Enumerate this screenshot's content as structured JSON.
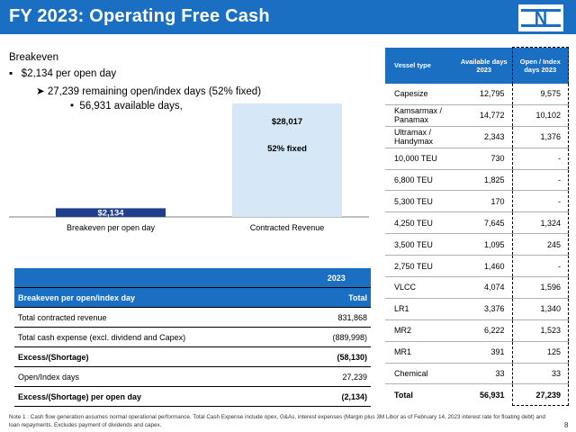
{
  "header": {
    "title": "FY 2023: Operating Free Cash",
    "logo_text": "N"
  },
  "colors": {
    "brand": "#1a6fc2",
    "breakeven_bar": "#1f3f8c",
    "contracted_bar": "#d6e7f8"
  },
  "bullets": {
    "heading": "Breakeven",
    "b1": "$2,134 per open day",
    "b2": "27,239 remaining open/index days (52% fixed)",
    "b3": "56,931 available days,"
  },
  "chart_data": {
    "type": "bar",
    "categories": [
      "Breakeven per open day",
      "Contracted Revenue"
    ],
    "values": [
      2134,
      28017
    ],
    "data_labels": [
      "$2,134",
      "$28,017"
    ],
    "annotations": [
      "52% fixed"
    ],
    "title": "",
    "xlabel": "",
    "ylabel": "",
    "ylim": [
      0,
      28017
    ]
  },
  "breakeven_table": {
    "year": "2023",
    "header_label": "Breakeven per open/index day",
    "total_label": "Total",
    "rows": [
      {
        "label": "Total contracted revenue",
        "value": "831,868",
        "bold": false
      },
      {
        "label": "Total cash expense (excl. dividend and Capex)",
        "value": "(889,998)",
        "bold": false
      },
      {
        "label": "Excess/(Shortage)",
        "value": "(58,130)",
        "bold": true
      },
      {
        "label": "Open/Index days",
        "value": "27,239",
        "bold": false
      },
      {
        "label": "Excess/(Shortage) per open day",
        "value": "(2,134)",
        "bold": true
      }
    ]
  },
  "vessel_table": {
    "headers": [
      "Vessel type",
      "Available days 2023",
      "Open / Index days 2023"
    ],
    "rows": [
      {
        "type": "Capesize",
        "available": "12,795",
        "open": "9,575"
      },
      {
        "type": "Kamsarmax / Panamax",
        "available": "14,772",
        "open": "10,102"
      },
      {
        "type": "Ultramax / Handymax",
        "available": "2,343",
        "open": "1,376"
      },
      {
        "type": "10,000 TEU",
        "available": "730",
        "open": "-"
      },
      {
        "type": "6,800 TEU",
        "available": "1,825",
        "open": "-"
      },
      {
        "type": "5,300 TEU",
        "available": "170",
        "open": "-"
      },
      {
        "type": "4,250 TEU",
        "available": "7,645",
        "open": "1,324"
      },
      {
        "type": "3,500 TEU",
        "available": "1,095",
        "open": "245"
      },
      {
        "type": "2,750 TEU",
        "available": "1,460",
        "open": "-"
      },
      {
        "type": "VLCC",
        "available": "4,074",
        "open": "1,596"
      },
      {
        "type": "LR1",
        "available": "3,376",
        "open": "1,340"
      },
      {
        "type": "MR2",
        "available": "6,222",
        "open": "1,523"
      },
      {
        "type": "MR1",
        "available": "391",
        "open": "125"
      },
      {
        "type": "Chemical",
        "available": "33",
        "open": "33"
      }
    ],
    "total": {
      "type": "Total",
      "available": "56,931",
      "open": "27,239"
    }
  },
  "footer": {
    "note": "Note 1 : Cash flow generation assumes normal operational performance. Total Cash Expense include opex, G&As, interest expenses (Margin plus 3M Libor as of February 14, 2023 interest rate for floating debt) and loan repayments. Excludes payment of dividends and capex.",
    "page": "8"
  }
}
